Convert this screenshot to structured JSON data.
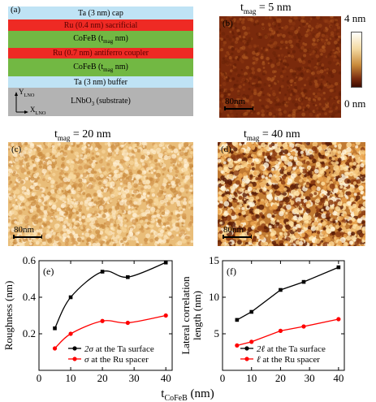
{
  "panel_a": {
    "label": "(a)",
    "layers": [
      {
        "text": "Ta (3 nm) cap",
        "color": "#bfe3f5",
        "text_color": "#000000"
      },
      {
        "text": "Ru (0.4 nm) sacrificial",
        "color": "#ee2a24",
        "text_color": "#5a0000"
      },
      {
        "text": "CoFeB (t",
        "sub": "mag",
        "after": " nm)",
        "color": "#72b843",
        "text_color": "#000000"
      },
      {
        "text": "Ru (0.7 nm) antiferro coupler",
        "color": "#ee2a24",
        "text_color": "#5a0000"
      },
      {
        "text": "CoFeB (t",
        "sub": "mag",
        "after": " nm)",
        "color": "#72b843",
        "text_color": "#000000"
      },
      {
        "text": "Ta (3 nm) buffer",
        "color": "#bfe3f5",
        "text_color": "#000000"
      },
      {
        "text": "LNbO",
        "sub": "3",
        "after": " (substrate)",
        "color": "#b3b3b3",
        "text_color": "#000000"
      }
    ],
    "axes": {
      "y": "Y",
      "y_sub": "LNO",
      "x": "X",
      "x_sub": "LNO"
    }
  },
  "afm_panels": [
    {
      "label": "(b)",
      "title_prefix": "t",
      "title_sub": "mag",
      "title_suffix": " = 5 nm",
      "scale": "80nm",
      "style": "smooth"
    },
    {
      "label": "(c)",
      "title_prefix": "t",
      "title_sub": "mag",
      "title_suffix": " = 20 nm",
      "scale": "80nm",
      "style": "light"
    },
    {
      "label": "(d)",
      "title_prefix": "t",
      "title_sub": "mag",
      "title_suffix": " = 40 nm",
      "scale": "80nm",
      "style": "rough"
    }
  ],
  "colorbar": {
    "max_label": "4 nm",
    "min_label": "0 nm"
  },
  "x_common_label": {
    "prefix": "t",
    "sub": "CoFeB",
    "suffix": " (nm)"
  },
  "chart_data": [
    {
      "type": "scatter",
      "panel": "(e)",
      "ylabel": "Roughness (nm)",
      "xlim": [
        0,
        42
      ],
      "ylim": [
        0.0,
        0.6
      ],
      "xticks": [
        0,
        10,
        20,
        30,
        40
      ],
      "yticks": [
        0.2,
        0.4,
        0.6
      ],
      "legend_position": "bottom-right",
      "series": [
        {
          "name": "2σ at the Ta surface",
          "legend_symbol": "2σ",
          "legend_rest": " at the Ta surface",
          "color": "#000000",
          "marker": "square",
          "x": [
            5,
            10,
            20,
            28,
            40
          ],
          "y": [
            0.23,
            0.4,
            0.54,
            0.51,
            0.59
          ]
        },
        {
          "name": "σ at the Ru spacer",
          "legend_symbol": "σ",
          "legend_rest": " at the Ru spacer",
          "color": "#ff0000",
          "marker": "circle",
          "x": [
            5,
            10,
            20,
            28,
            40
          ],
          "y": [
            0.12,
            0.2,
            0.27,
            0.26,
            0.3
          ]
        }
      ]
    },
    {
      "type": "line",
      "panel": "(f)",
      "ylabel_line1": "Lateral correlation",
      "ylabel_line2": "length (nm)",
      "xlim": [
        0,
        42
      ],
      "ylim": [
        0,
        15
      ],
      "xticks": [
        0,
        10,
        20,
        30,
        40
      ],
      "yticks": [
        5,
        10,
        15
      ],
      "legend_position": "bottom-right",
      "series": [
        {
          "name": "2ℓ at the Ta surface",
          "legend_symbol": "2ℓ",
          "legend_rest": " at the Ta surface",
          "color": "#000000",
          "marker": "square",
          "x": [
            5,
            10,
            20,
            28,
            40
          ],
          "y": [
            6.9,
            8.0,
            11.0,
            12.1,
            14.1
          ]
        },
        {
          "name": "ℓ at the Ru spacer",
          "legend_symbol": "ℓ",
          "legend_rest": " at the Ru spacer",
          "color": "#ff0000",
          "marker": "circle",
          "x": [
            5,
            10,
            20,
            28,
            40
          ],
          "y": [
            3.4,
            3.9,
            5.4,
            6.0,
            7.0
          ]
        }
      ]
    }
  ]
}
